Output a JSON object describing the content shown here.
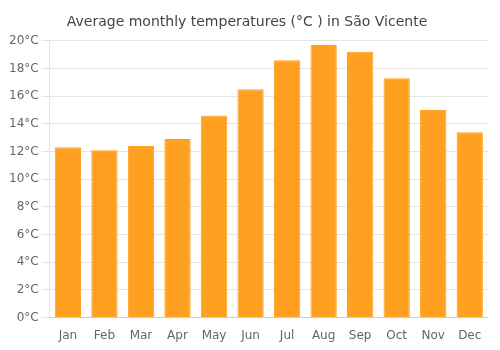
{
  "chart_data": {
    "type": "bar",
    "title": "Average monthly temperatures (°C ) in São Vicente",
    "categories": [
      "Jan",
      "Feb",
      "Mar",
      "Apr",
      "May",
      "Jun",
      "Jul",
      "Aug",
      "Sep",
      "Oct",
      "Nov",
      "Dec"
    ],
    "values": [
      12.3,
      12.1,
      12.4,
      12.9,
      14.6,
      16.5,
      18.6,
      19.7,
      19.2,
      17.3,
      15.0,
      13.4
    ],
    "color": "#FFA020",
    "ylim": [
      0,
      20
    ],
    "yticks": [
      {
        "value": 0,
        "label": "0°C"
      },
      {
        "value": 2,
        "label": "2°C"
      },
      {
        "value": 4,
        "label": "4°C"
      },
      {
        "value": 6,
        "label": "6°C"
      },
      {
        "value": 8,
        "label": "8°C"
      },
      {
        "value": 10,
        "label": "10°C"
      },
      {
        "value": 12,
        "label": "12°C"
      },
      {
        "value": 14,
        "label": "14°C"
      },
      {
        "value": 16,
        "label": "16°C"
      },
      {
        "value": 18,
        "label": "18°C"
      },
      {
        "value": 20,
        "label": "20°C"
      }
    ],
    "grid": true
  }
}
